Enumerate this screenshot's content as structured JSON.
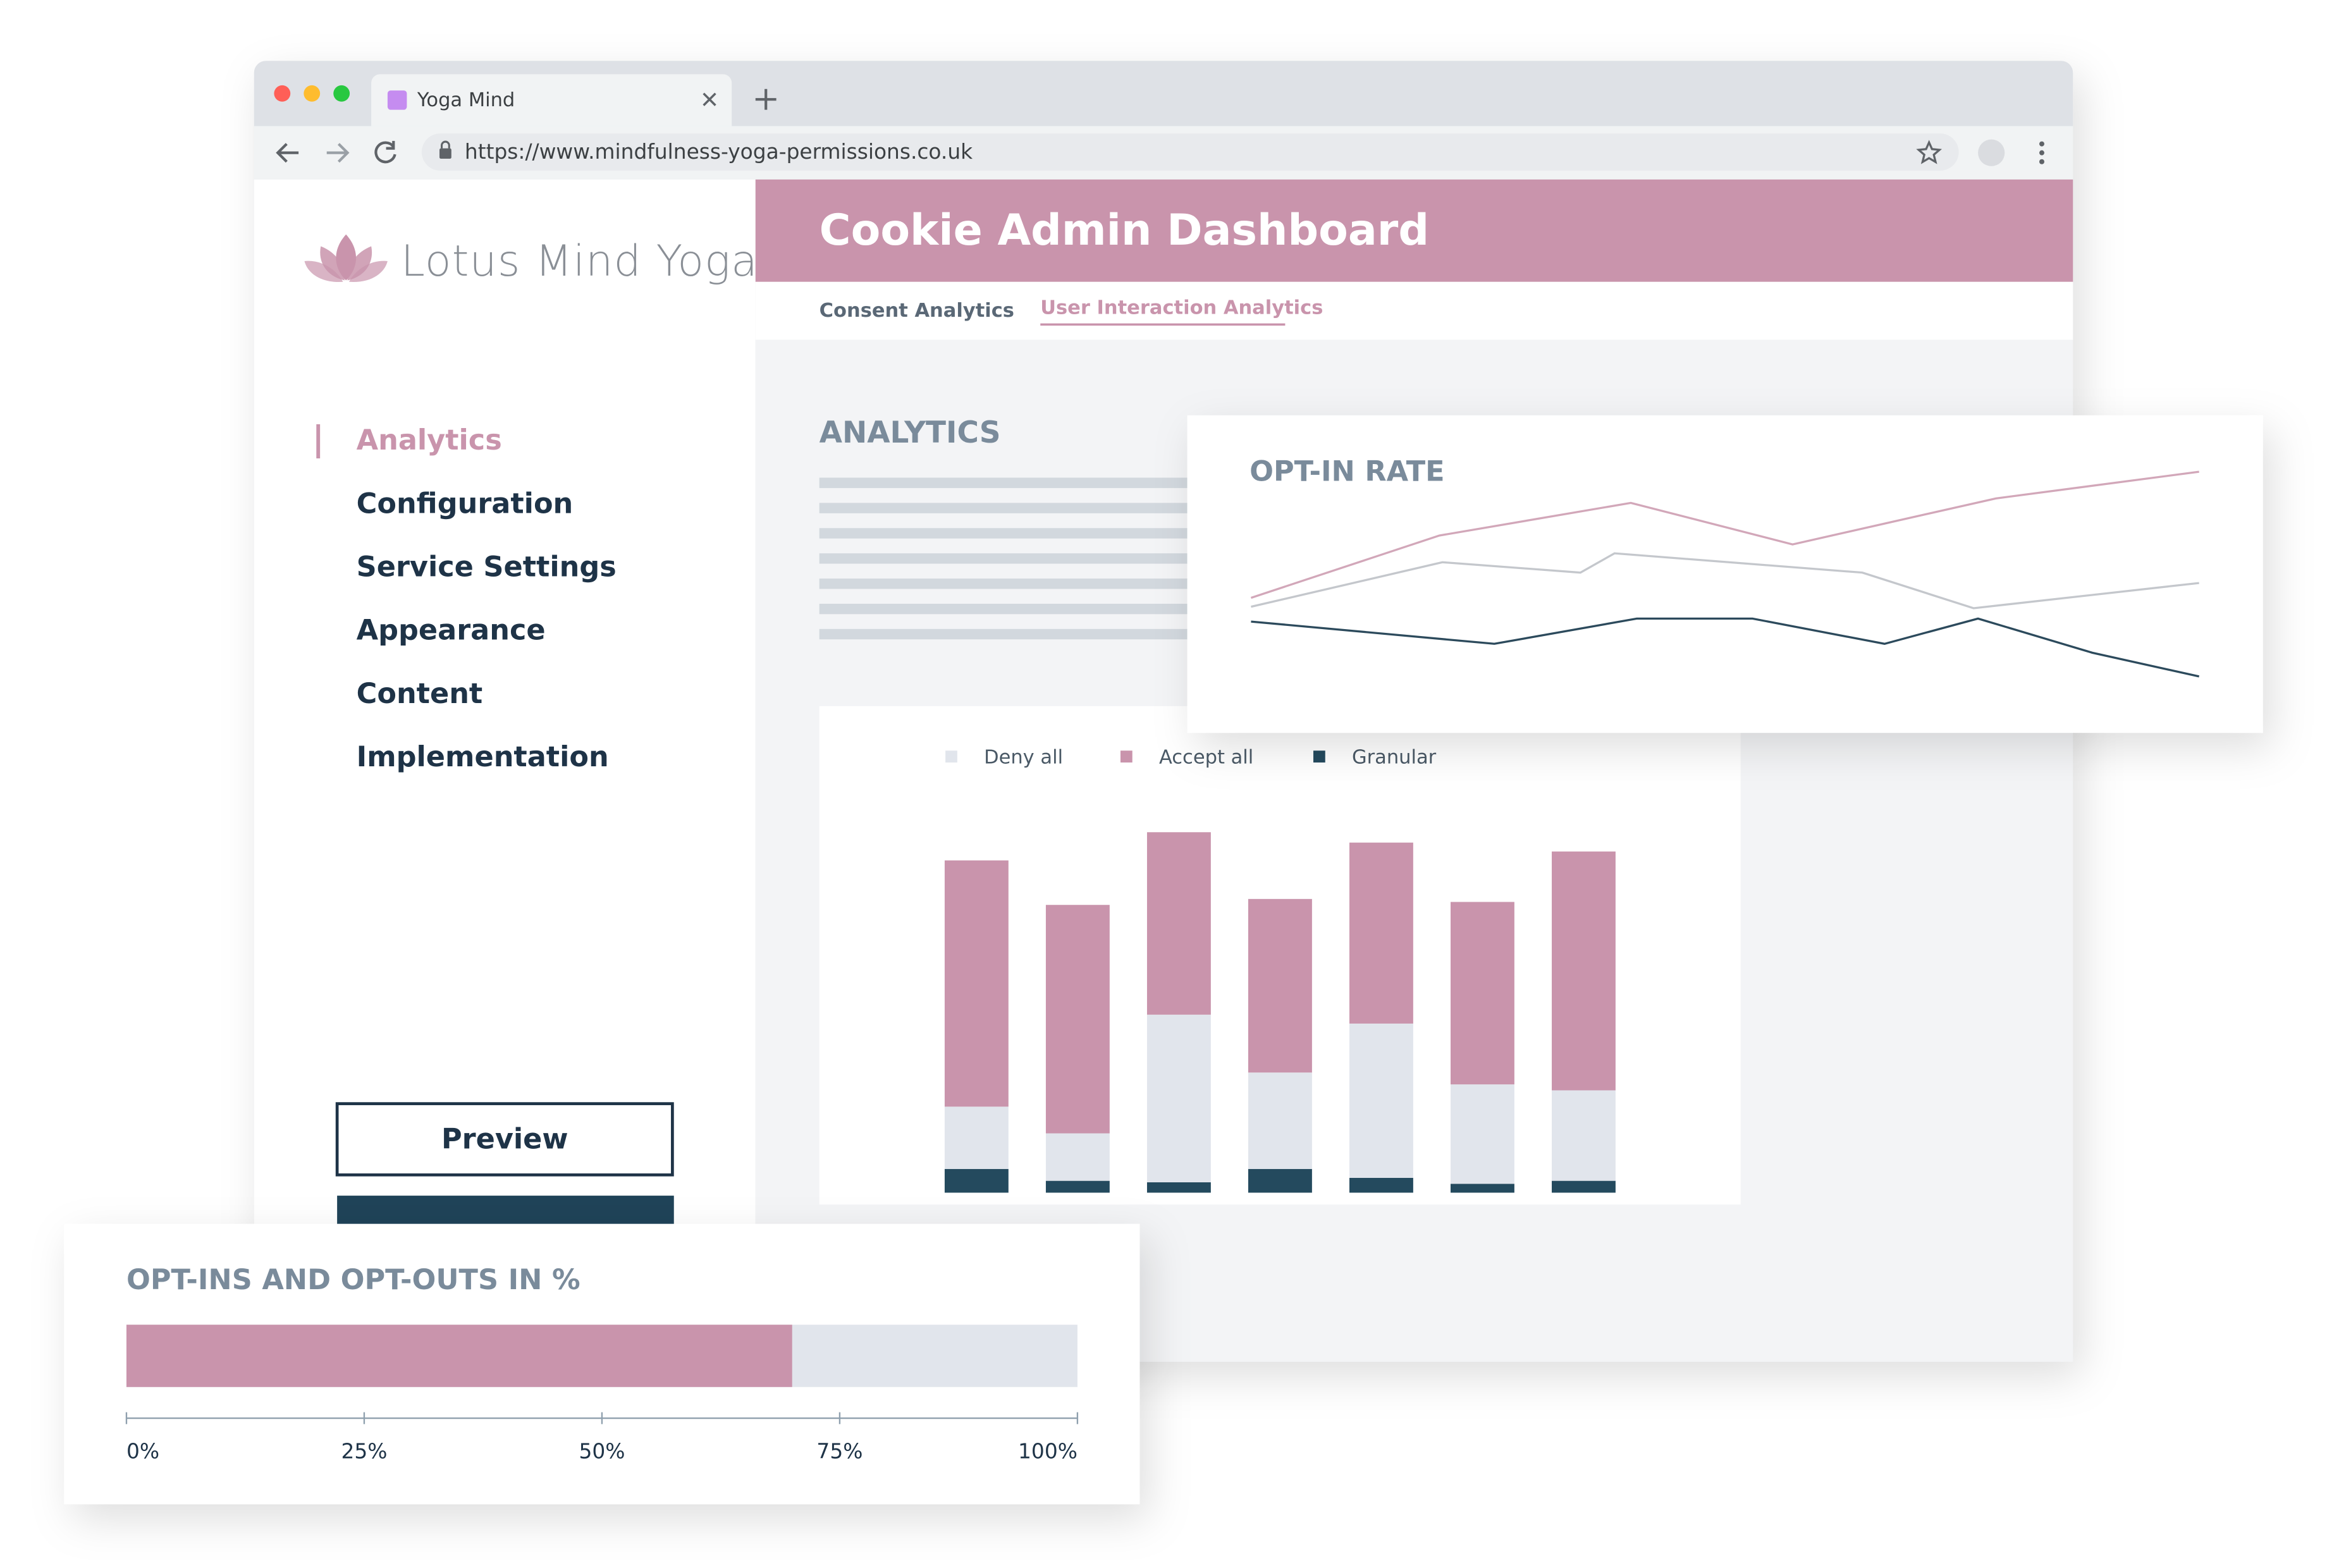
{
  "browser": {
    "tab_title": "Yoga Mind",
    "url": "https://www.mindfulness-yoga-permissions.co.uk"
  },
  "sidebar": {
    "logo": "Lotus Mind Yoga",
    "nav": [
      "Analytics",
      "Configuration",
      "Service Settings",
      "Appearance",
      "Content",
      "Implementation"
    ],
    "button": "Preview"
  },
  "header": {
    "title": "Cookie Admin Dashboard",
    "tabs": [
      "Consent Analytics",
      "User Interaction Analytics"
    ]
  },
  "section_title": "ANALYTICS",
  "chart_data": [
    {
      "type": "line",
      "title": "OPT-IN RATE",
      "xlim": [
        0,
        639
      ],
      "ylim": [
        0,
        150
      ],
      "series": [
        {
          "color": "#d2a7b9",
          "x": [
            0,
            127,
            256,
            365,
            502,
            639
          ],
          "values": [
            63,
            105,
            127,
            99,
            130,
            148
          ]
        },
        {
          "color": "#c4c7cc",
          "x": [
            0,
            129,
            222,
            245,
            412,
            487,
            639
          ],
          "values": [
            57,
            87,
            80,
            93,
            80,
            56,
            73
          ]
        },
        {
          "color": "#2c4a5c",
          "x": [
            0,
            164,
            260,
            338,
            427,
            490,
            567,
            639
          ],
          "values": [
            47,
            32,
            49,
            49,
            32,
            49,
            26,
            10
          ]
        }
      ]
    },
    {
      "type": "stacked_bar",
      "categories": [
        null,
        null,
        null,
        null,
        null,
        null,
        null
      ],
      "ylim": [
        0,
        250
      ],
      "series": [
        {
          "name": "Deny all",
          "color": "#e1e5ec",
          "values": [
            42,
            32,
            113,
            65,
            104,
            67,
            61
          ]
        },
        {
          "name": "Accept all",
          "color": "#c994ac",
          "values": [
            166,
            154,
            123,
            117,
            122,
            123,
            161
          ]
        },
        {
          "name": "Granular",
          "color": "#244a5e",
          "values": [
            16,
            8,
            7,
            16,
            10,
            6,
            8
          ]
        }
      ]
    },
    {
      "type": "hbar",
      "title": "OPT-INS AND OPT-OUTS IN %",
      "values": [
        70
      ],
      "color": "#c994ac",
      "track_color": "#e1e5ec",
      "xlim": [
        0,
        100
      ],
      "xticks": [
        {
          "value": 0,
          "label": "0%"
        },
        {
          "value": 25,
          "label": "25%"
        },
        {
          "value": 50,
          "label": "50%"
        },
        {
          "value": 75,
          "label": "75%"
        },
        {
          "value": 100,
          "label": "100%"
        }
      ]
    }
  ]
}
